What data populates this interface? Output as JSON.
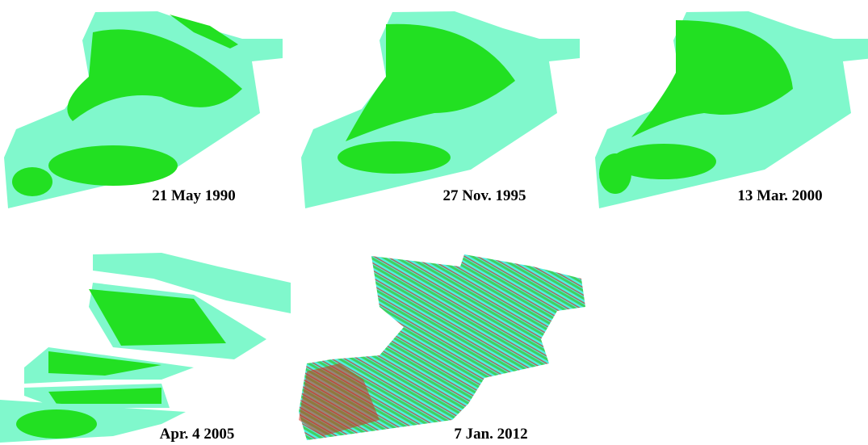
{
  "panels": [
    {
      "label": "21 May 1990"
    },
    {
      "label": "27 Nov. 1995"
    },
    {
      "label": "13 Mar. 2000"
    },
    {
      "label": "Apr. 4 2005"
    },
    {
      "label": "7 Jan. 2012"
    }
  ]
}
